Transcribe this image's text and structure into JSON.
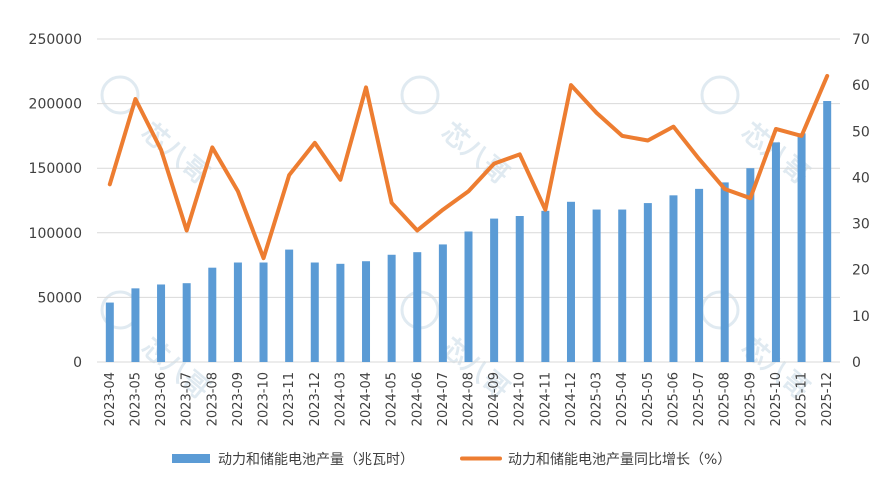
{
  "chart_data": {
    "type": "bar",
    "categories": [
      "2023-04",
      "2023-05",
      "2023-06",
      "2023-07",
      "2023-08",
      "2023-09",
      "2023-10",
      "2023-11",
      "2023-12",
      "2024-03",
      "2024-04",
      "2024-05",
      "2024-06",
      "2024-07",
      "2024-08",
      "2024-09",
      "2024-10",
      "2024-11",
      "2024-12",
      "2025-03",
      "2025-04",
      "2025-05",
      "2025-06",
      "2025-07",
      "2025-08",
      "2025-09",
      "2025-10",
      "2025-11",
      "2025-12"
    ],
    "series": [
      {
        "name": "动力和储能电池产量（兆瓦时）",
        "type": "bar",
        "axis": "left",
        "color": "#5b9bd5",
        "values": [
          46000,
          57000,
          60000,
          61000,
          73000,
          77000,
          77000,
          87000,
          77000,
          76000,
          78000,
          83000,
          85000,
          91000,
          101000,
          111000,
          113000,
          117000,
          124000,
          118000,
          118000,
          123000,
          129000,
          134000,
          139000,
          150000,
          170000,
          177000,
          202000
        ]
      },
      {
        "name": "动力和储能电池产量同比增长（%）",
        "type": "line",
        "axis": "right",
        "color": "#ed7d31",
        "values": [
          38.5,
          57,
          46,
          28.5,
          46.5,
          37,
          22.5,
          40.5,
          47.5,
          39.5,
          59.5,
          34.5,
          28.5,
          33,
          37,
          43,
          45,
          33,
          60,
          54,
          49,
          48,
          51,
          44,
          37.5,
          35.5,
          50.5,
          49,
          62
        ]
      }
    ],
    "y_left": {
      "min": 0,
      "max": 250000,
      "ticks": [
        "0",
        "50000",
        "100000",
        "150000",
        "200000",
        "250000"
      ]
    },
    "y_right": {
      "min": 0,
      "max": 70,
      "ticks": [
        "0",
        "10",
        "20",
        "30",
        "40",
        "50",
        "60",
        "70"
      ]
    },
    "grid": true,
    "legend_position": "bottom",
    "watermark": "芯八哥",
    "title": "",
    "xlabel": "",
    "ylabel": ""
  }
}
